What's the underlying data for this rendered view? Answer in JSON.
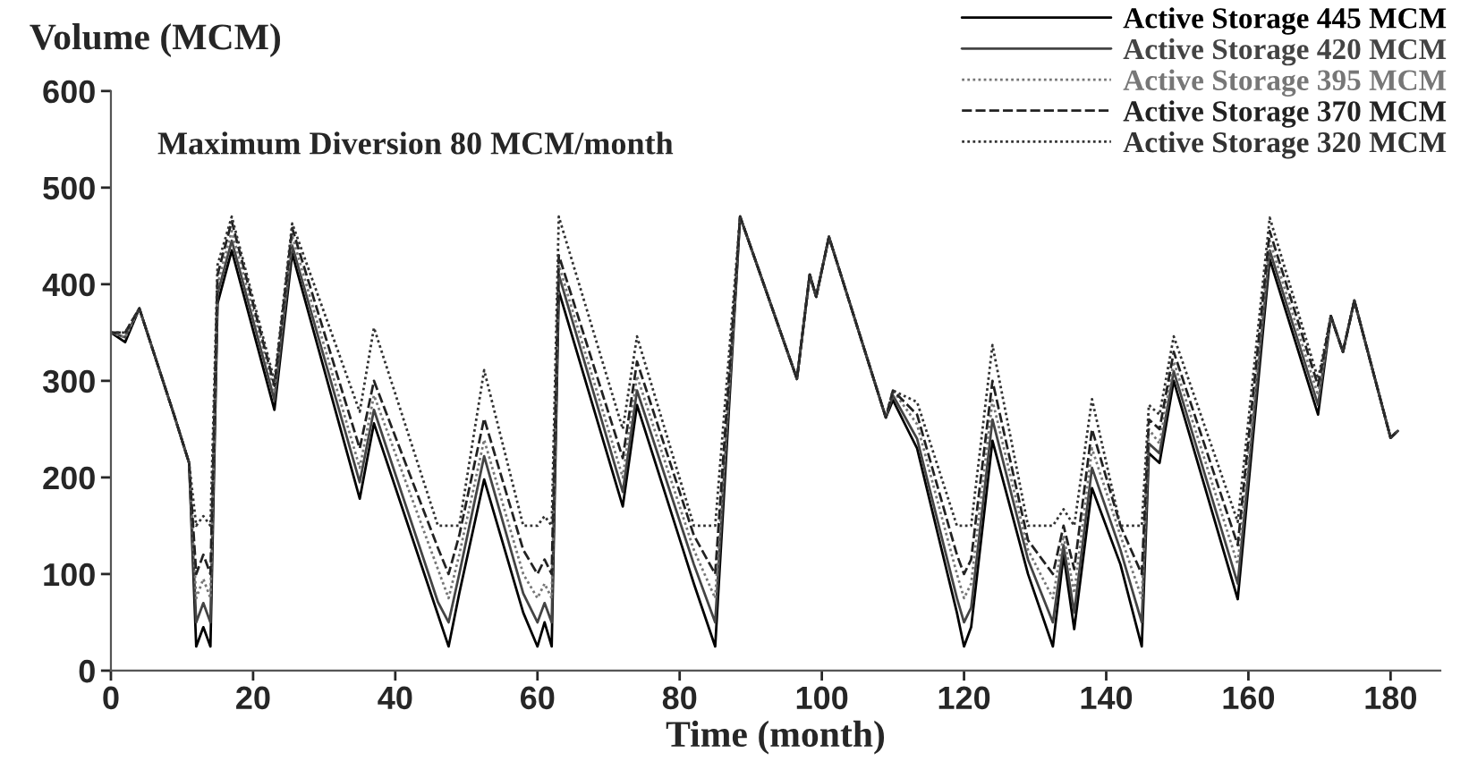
{
  "chart_data": {
    "type": "line",
    "ylabel": "Volume (MCM)",
    "xlabel": "Time (month)",
    "annotations": [
      "Maximum Diversion 80 MCM/month"
    ],
    "x": [
      0,
      2,
      4,
      9,
      11,
      12,
      13,
      14,
      15,
      17,
      23,
      25.5,
      35,
      37,
      46,
      47.5,
      49,
      52.5,
      58,
      60,
      61,
      62,
      63,
      72,
      74,
      82,
      85,
      88.5,
      96.5,
      98.3,
      99.2,
      101,
      109,
      110,
      113.4,
      119,
      120,
      121,
      124,
      129,
      132.5,
      134,
      135.5,
      138,
      142,
      145,
      146,
      147.5,
      149.5,
      158.5,
      163,
      169.8,
      171.6,
      173.3,
      174.9,
      180,
      181
    ],
    "series": [
      {
        "name": "Active Storage 445 MCM",
        "color": "#000000",
        "line_style": "solid",
        "values": [
          350,
          340,
          375,
          262,
          215,
          25,
          45,
          25,
          380,
          435,
          270,
          432,
          178,
          256,
          58,
          25,
          80,
          198,
          60,
          25,
          50,
          25,
          393,
          170,
          275,
          90,
          25,
          470,
          302,
          410,
          387,
          449,
          262,
          280,
          230,
          60,
          25,
          45,
          238,
          100,
          25,
          120,
          43,
          189,
          110,
          25,
          225,
          215,
          300,
          74,
          426,
          265,
          367,
          330,
          383,
          241,
          248
        ]
      },
      {
        "name": "Active Storage 420 MCM",
        "color": "#444444",
        "line_style": "solid",
        "values": [
          350,
          345,
          375,
          262,
          215,
          50,
          70,
          50,
          390,
          445,
          280,
          440,
          195,
          270,
          71,
          50,
          100,
          222,
          80,
          50,
          70,
          50,
          410,
          185,
          290,
          110,
          50,
          470,
          302,
          410,
          387,
          449,
          262,
          285,
          240,
          75,
          50,
          65,
          260,
          115,
          50,
          130,
          60,
          210,
          125,
          50,
          235,
          225,
          310,
          90,
          435,
          275,
          367,
          330,
          383,
          241,
          248
        ]
      },
      {
        "name": "Active Storage 395 MCM",
        "color": "#777777",
        "line_style": "dotted",
        "values": [
          350,
          345,
          375,
          262,
          215,
          75,
          95,
          75,
          400,
          455,
          290,
          450,
          210,
          285,
          105,
          75,
          120,
          239,
          100,
          75,
          90,
          75,
          420,
          200,
          305,
          125,
          75,
          470,
          302,
          410,
          387,
          449,
          262,
          290,
          255,
          100,
          75,
          90,
          280,
          125,
          75,
          140,
          80,
          230,
          140,
          75,
          250,
          235,
          320,
          110,
          445,
          285,
          367,
          330,
          383,
          241,
          248
        ]
      },
      {
        "name": "Active Storage 370 MCM",
        "color": "#222222",
        "line_style": "dashed",
        "values": [
          350,
          350,
          375,
          262,
          215,
          100,
          120,
          100,
          410,
          465,
          295,
          458,
          230,
          300,
          127,
          100,
          140,
          261,
          125,
          100,
          115,
          100,
          430,
          220,
          320,
          140,
          100,
          470,
          302,
          410,
          387,
          449,
          262,
          290,
          265,
          120,
          100,
          115,
          300,
          135,
          100,
          150,
          105,
          250,
          150,
          100,
          260,
          250,
          330,
          130,
          455,
          295,
          367,
          330,
          383,
          241,
          248
        ]
      },
      {
        "name": "Active Storage 320 MCM",
        "color": "#333333",
        "line_style": "dotted",
        "values": [
          350,
          350,
          375,
          262,
          215,
          150,
          160,
          150,
          420,
          470,
          300,
          463,
          268,
          355,
          150,
          150,
          150,
          311,
          150,
          150,
          160,
          150,
          470,
          250,
          346,
          150,
          150,
          470,
          302,
          410,
          387,
          449,
          262,
          290,
          278,
          150,
          150,
          150,
          337,
          150,
          150,
          167,
          150,
          281,
          150,
          150,
          275,
          265,
          346,
          154,
          469,
          302,
          367,
          330,
          383,
          241,
          248
        ]
      }
    ],
    "xlim": [
      0,
      187
    ],
    "ylim": [
      0,
      600
    ],
    "xticks": [
      0,
      20,
      40,
      60,
      80,
      100,
      120,
      140,
      160,
      180
    ],
    "yticks": [
      0,
      100,
      200,
      300,
      400,
      500,
      600
    ],
    "grid": false,
    "legend": "top right"
  }
}
